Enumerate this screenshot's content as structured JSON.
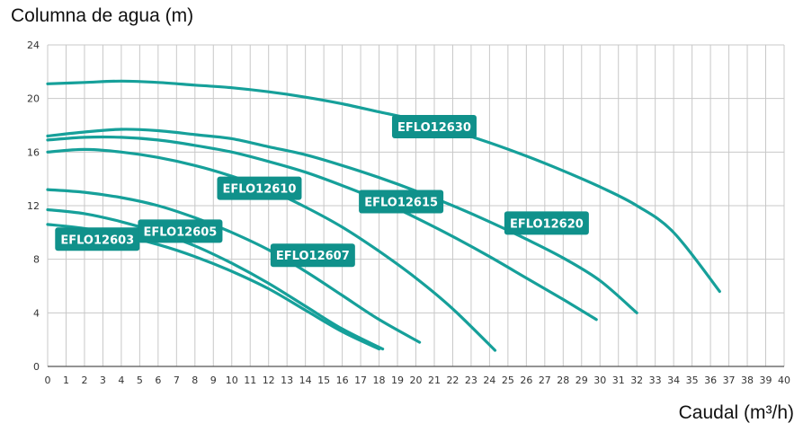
{
  "chart_data": {
    "type": "line",
    "ylabel": "Columna de agua (m)",
    "xlabel": "Caudal (m³/h)",
    "xlim": [
      0,
      40
    ],
    "ylim": [
      0,
      24
    ],
    "x_ticks": [
      0,
      1,
      2,
      3,
      4,
      5,
      6,
      7,
      8,
      9,
      10,
      11,
      12,
      13,
      14,
      15,
      16,
      17,
      18,
      19,
      20,
      21,
      22,
      23,
      24,
      25,
      26,
      27,
      28,
      29,
      30,
      31,
      32,
      33,
      34,
      35,
      36,
      37,
      38,
      39,
      40
    ],
    "y_ticks": [
      0,
      4,
      8,
      12,
      16,
      20,
      24
    ],
    "grid": true,
    "line_color": "#16a09a",
    "label_color": "#10918b",
    "series": [
      {
        "name": "EFLO12603",
        "label_at": [
          2.7,
          9.5
        ],
        "points": [
          [
            0,
            10.6
          ],
          [
            2,
            10.3
          ],
          [
            4,
            9.8
          ],
          [
            6,
            9.1
          ],
          [
            8,
            8.2
          ],
          [
            10,
            7.1
          ],
          [
            12,
            5.8
          ],
          [
            14,
            4.2
          ],
          [
            16,
            2.6
          ],
          [
            18,
            1.3
          ]
        ]
      },
      {
        "name": "EFLO12605",
        "label_at": [
          7.2,
          10.1
        ],
        "points": [
          [
            0,
            11.7
          ],
          [
            2,
            11.4
          ],
          [
            4,
            10.8
          ],
          [
            6,
            10.0
          ],
          [
            8,
            9.0
          ],
          [
            10,
            7.7
          ],
          [
            12,
            6.2
          ],
          [
            14,
            4.5
          ],
          [
            16,
            2.8
          ],
          [
            18.2,
            1.3
          ]
        ]
      },
      {
        "name": "EFLO12607",
        "label_at": [
          14.4,
          8.3
        ],
        "points": [
          [
            0,
            13.2
          ],
          [
            2,
            13.0
          ],
          [
            4,
            12.6
          ],
          [
            6,
            12.0
          ],
          [
            8,
            11.1
          ],
          [
            10,
            10.0
          ],
          [
            12,
            8.7
          ],
          [
            14,
            7.1
          ],
          [
            16,
            5.3
          ],
          [
            18,
            3.5
          ],
          [
            20.2,
            1.8
          ]
        ]
      },
      {
        "name": "EFLO12610",
        "label_at": [
          11.5,
          13.3
        ],
        "points": [
          [
            0,
            16.0
          ],
          [
            2,
            16.2
          ],
          [
            4,
            16.0
          ],
          [
            6,
            15.6
          ],
          [
            8,
            15.0
          ],
          [
            10,
            14.2
          ],
          [
            12,
            13.2
          ],
          [
            14,
            11.9
          ],
          [
            16,
            10.4
          ],
          [
            18,
            8.6
          ],
          [
            20,
            6.6
          ],
          [
            22,
            4.3
          ],
          [
            24.3,
            1.2
          ]
        ]
      },
      {
        "name": "EFLO12615",
        "label_at": [
          19.2,
          12.3
        ],
        "points": [
          [
            0,
            16.9
          ],
          [
            2,
            17.1
          ],
          [
            4,
            17.1
          ],
          [
            6,
            16.9
          ],
          [
            8,
            16.5
          ],
          [
            10,
            16.0
          ],
          [
            12,
            15.3
          ],
          [
            14,
            14.5
          ],
          [
            16,
            13.5
          ],
          [
            18,
            12.4
          ],
          [
            20,
            11.1
          ],
          [
            22,
            9.7
          ],
          [
            24,
            8.2
          ],
          [
            26,
            6.6
          ],
          [
            28,
            5.0
          ],
          [
            29.8,
            3.5
          ]
        ]
      },
      {
        "name": "EFLO12620",
        "label_at": [
          27.1,
          10.7
        ],
        "points": [
          [
            0,
            17.2
          ],
          [
            2,
            17.5
          ],
          [
            4,
            17.7
          ],
          [
            6,
            17.6
          ],
          [
            8,
            17.3
          ],
          [
            10,
            17.0
          ],
          [
            12,
            16.4
          ],
          [
            14,
            15.8
          ],
          [
            16,
            15.0
          ],
          [
            18,
            14.1
          ],
          [
            20,
            13.1
          ],
          [
            22,
            12.0
          ],
          [
            24,
            10.8
          ],
          [
            26,
            9.5
          ],
          [
            28,
            8.1
          ],
          [
            30,
            6.4
          ],
          [
            32,
            4.0
          ]
        ]
      },
      {
        "name": "EFLO12630",
        "label_at": [
          21.0,
          17.9
        ],
        "points": [
          [
            0,
            21.1
          ],
          [
            2,
            21.2
          ],
          [
            4,
            21.3
          ],
          [
            6,
            21.2
          ],
          [
            8,
            21.0
          ],
          [
            10,
            20.8
          ],
          [
            12,
            20.5
          ],
          [
            14,
            20.1
          ],
          [
            16,
            19.6
          ],
          [
            18,
            19.0
          ],
          [
            20,
            18.4
          ],
          [
            22,
            17.6
          ],
          [
            24,
            16.7
          ],
          [
            26,
            15.7
          ],
          [
            28,
            14.6
          ],
          [
            30,
            13.4
          ],
          [
            32,
            12.0
          ],
          [
            34,
            10.0
          ],
          [
            36.5,
            5.6
          ]
        ]
      }
    ]
  }
}
